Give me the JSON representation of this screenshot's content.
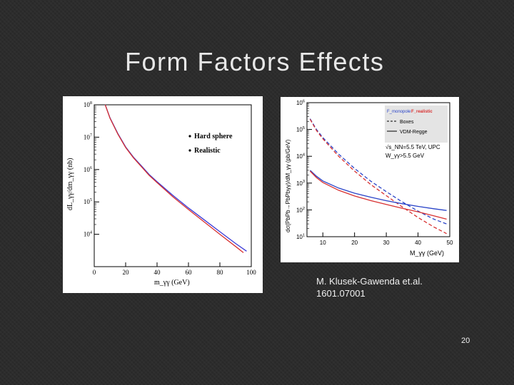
{
  "slide": {
    "title": "Form Factors Effects",
    "caption_line1": "M. Klusek-Gawenda et.al.",
    "caption_line2": "1601.07001",
    "page_number": "20"
  },
  "chart_data": [
    {
      "type": "line",
      "xlabel": "m_γγ (GeV)",
      "ylabel": "dL_γγ/dm_γγ (nb)",
      "xlim": [
        0,
        100
      ],
      "ylim": [
        1000,
        100000000
      ],
      "yscale": "log",
      "x_ticks": [
        "0",
        "20",
        "40",
        "60",
        "80",
        "100"
      ],
      "y_ticks": [
        "10^4",
        "10^5",
        "10^6",
        "10^7",
        "10^8"
      ],
      "legend_position": "top-right",
      "grid": false,
      "series": [
        {
          "name": "Hard sphere",
          "color": "#3a3ad8",
          "style": "solid",
          "x": [
            7,
            10,
            15,
            20,
            25,
            30,
            35,
            40,
            50,
            60,
            70,
            80,
            90,
            97
          ],
          "y": [
            100000000,
            40000000,
            13000000,
            5000000,
            2400000,
            1300000,
            700000,
            420000,
            160000,
            65000,
            28000,
            12000,
            5200,
            3000
          ]
        },
        {
          "name": "Realistic",
          "color": "#d83030",
          "style": "solid",
          "x": [
            7,
            10,
            15,
            20,
            25,
            30,
            35,
            40,
            50,
            60,
            70,
            80,
            90,
            95
          ],
          "y": [
            100000000,
            39000000,
            12500000,
            4800000,
            2300000,
            1230000,
            660000,
            395000,
            145000,
            58000,
            24000,
            10000,
            4200,
            2700
          ]
        }
      ]
    },
    {
      "type": "line",
      "xlabel": "M_γγ (GeV)",
      "ylabel": "dσ(PbPb→PbPbγγ)/dM_γγ (pb/GeV)",
      "xlim": [
        5,
        50
      ],
      "ylim": [
        10,
        1000000
      ],
      "yscale": "log",
      "x_ticks": [
        "10",
        "20",
        "30",
        "40",
        "50"
      ],
      "y_ticks": [
        "10^1",
        "10^2",
        "10^3",
        "10^4",
        "10^5",
        "10^6"
      ],
      "legend_title_left": "F_monopole",
      "legend_title_right": "F_realistic",
      "legend_entries": [
        "Boxes",
        "VDM-Regge"
      ],
      "annotation_line1": "√s_NN=5.5 TeV, UPC",
      "annotation_line2": "W_γγ>5.5 GeV",
      "legend_position": "top-right",
      "grid": false,
      "colors": {
        "monopole": "#2a44c8",
        "realistic": "#d83030"
      },
      "series": [
        {
          "name": "monopole Boxes",
          "color": "#2a44c8",
          "style": "dashed",
          "x": [
            6,
            8,
            10,
            15,
            20,
            25,
            30,
            35,
            40,
            45,
            49
          ],
          "y": [
            250000,
            100000,
            50000,
            12000,
            3500,
            1200,
            480,
            200,
            90,
            45,
            30
          ]
        },
        {
          "name": "realistic Boxes",
          "color": "#d83030",
          "style": "dashed",
          "x": [
            6,
            8,
            10,
            15,
            20,
            25,
            30,
            35,
            40,
            45,
            49
          ],
          "y": [
            240000,
            92000,
            45000,
            10000,
            2800,
            900,
            340,
            130,
            52,
            23,
            13
          ]
        },
        {
          "name": "monopole VDM-Regge",
          "color": "#2a44c8",
          "style": "solid",
          "x": [
            6,
            8,
            10,
            15,
            20,
            25,
            30,
            35,
            40,
            45,
            49
          ],
          "y": [
            3000,
            1800,
            1200,
            650,
            420,
            300,
            220,
            170,
            135,
            110,
            95
          ]
        },
        {
          "name": "realistic VDM-Regge",
          "color": "#d83030",
          "style": "solid",
          "x": [
            6,
            8,
            10,
            15,
            20,
            25,
            30,
            35,
            40,
            45,
            49
          ],
          "y": [
            2800,
            1600,
            1050,
            540,
            330,
            225,
            160,
            115,
            85,
            60,
            45
          ]
        }
      ]
    }
  ]
}
